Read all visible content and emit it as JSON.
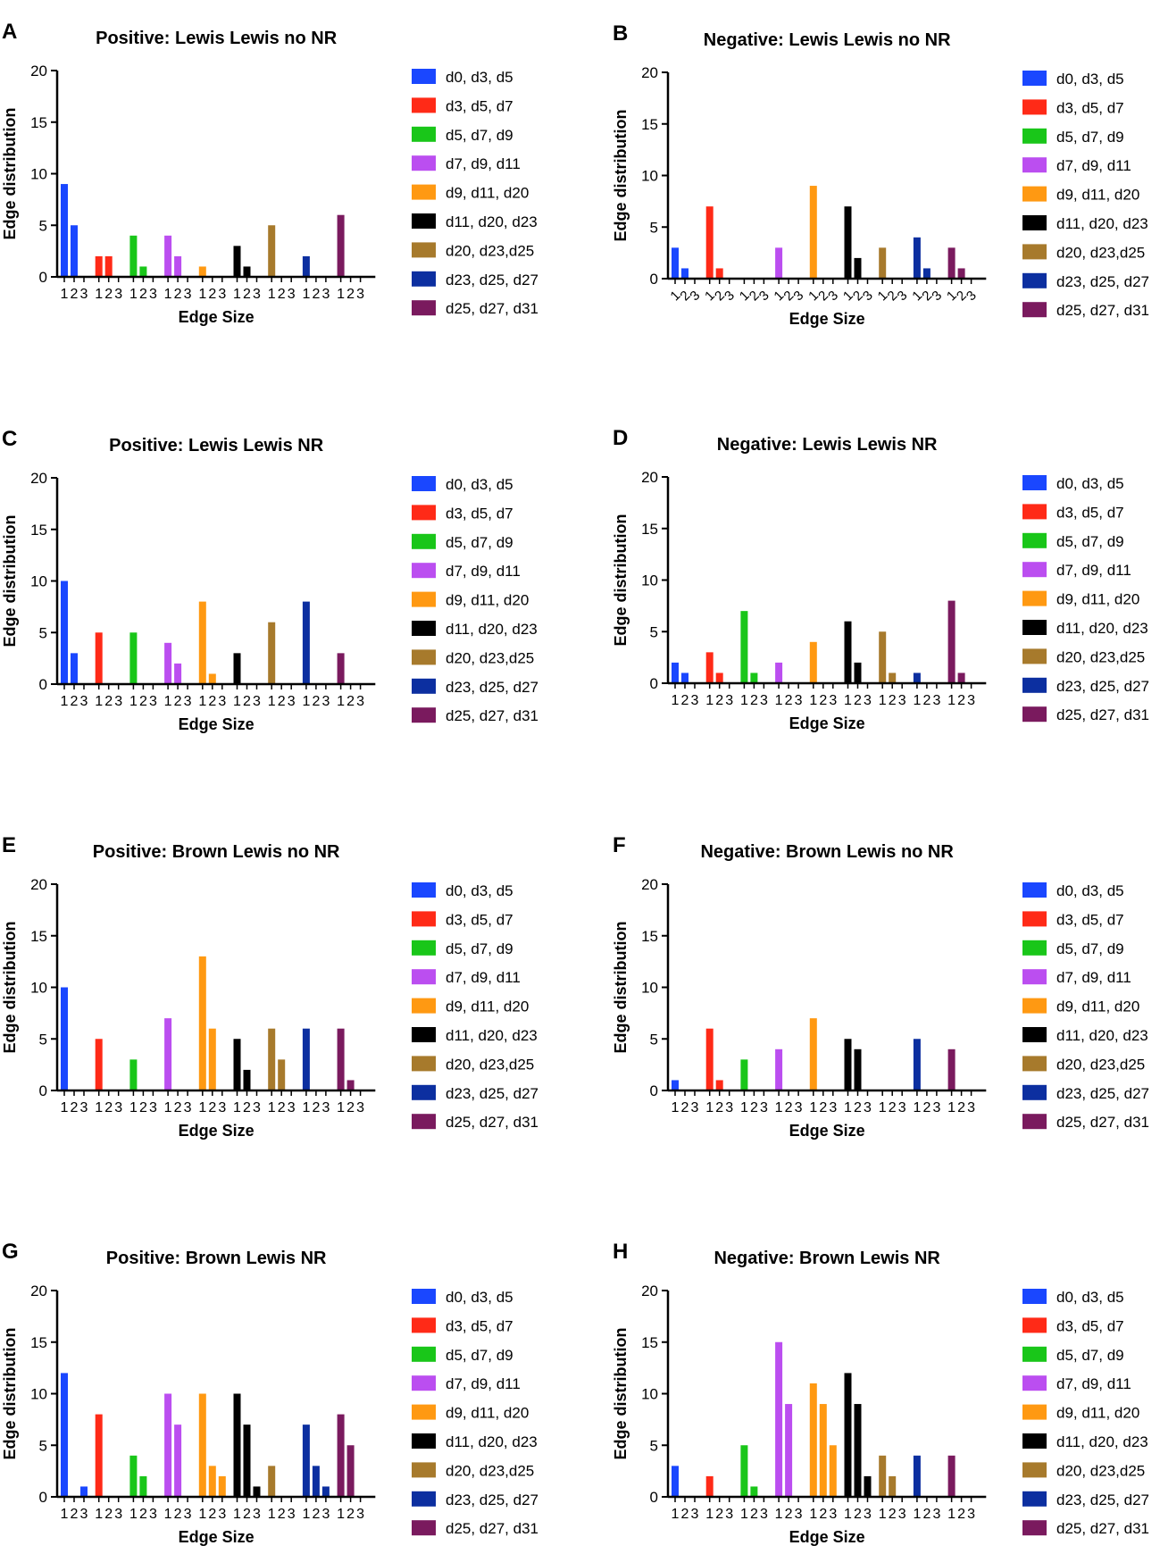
{
  "figure": {
    "series_colors": [
      "#1a47ff",
      "#ff2a17",
      "#19c619",
      "#bb4ef0",
      "#ff9912",
      "#000000",
      "#a77a2c",
      "#0c2fa0",
      "#7a1a5e"
    ],
    "legend_labels": [
      "d0, d3, d5",
      "d3, d5, d7",
      "d5, d7, d9",
      "d7, d9, d11",
      "d9, d11, d20",
      "d11, d20, d23",
      "d20, d23,d25",
      "d23, d25, d27",
      "d25, d27, d31"
    ]
  },
  "chart_data": [
    {
      "panel": "A",
      "type": "bar",
      "title": "Positive: Lewis Lewis no NR",
      "xlabel": "Edge Size",
      "ylabel": "Edge distribution",
      "ylim": [
        0,
        20
      ],
      "yticks": [
        0,
        5,
        10,
        15,
        20
      ],
      "categories": [
        "1",
        "2",
        "3"
      ],
      "tick_style": "straight",
      "series": [
        {
          "name": "d0, d3, d5",
          "values": [
            9,
            5,
            0
          ]
        },
        {
          "name": "d3, d5, d7",
          "values": [
            2,
            2,
            0
          ]
        },
        {
          "name": "d5, d7, d9",
          "values": [
            4,
            1,
            0
          ]
        },
        {
          "name": "d7, d9, d11",
          "values": [
            4,
            2,
            0
          ]
        },
        {
          "name": "d9, d11, d20",
          "values": [
            1,
            0,
            0
          ]
        },
        {
          "name": "d11, d20, d23",
          "values": [
            3,
            1,
            0
          ]
        },
        {
          "name": "d20, d23,d25",
          "values": [
            5,
            0,
            0
          ]
        },
        {
          "name": "d23, d25, d27",
          "values": [
            2,
            0,
            0
          ]
        },
        {
          "name": "d25, d27, d31",
          "values": [
            6,
            0,
            0
          ]
        }
      ]
    },
    {
      "panel": "B",
      "type": "bar",
      "title": "Negative: Lewis Lewis no NR",
      "xlabel": "Edge Size",
      "ylabel": "Edge distribution",
      "ylim": [
        0,
        20
      ],
      "yticks": [
        0,
        5,
        10,
        15,
        20
      ],
      "categories": [
        "1",
        "2",
        "3"
      ],
      "tick_style": "rotated",
      "series": [
        {
          "name": "d0, d3, d5",
          "values": [
            3,
            1,
            0
          ]
        },
        {
          "name": "d3, d5, d7",
          "values": [
            7,
            1,
            0
          ]
        },
        {
          "name": "d5, d7, d9",
          "values": [
            0,
            0,
            0
          ]
        },
        {
          "name": "d7, d9, d11",
          "values": [
            3,
            0,
            0
          ]
        },
        {
          "name": "d9, d11, d20",
          "values": [
            9,
            0,
            0
          ]
        },
        {
          "name": "d11, d20, d23",
          "values": [
            7,
            2,
            0
          ]
        },
        {
          "name": "d20, d23,d25",
          "values": [
            3,
            0,
            0
          ]
        },
        {
          "name": "d23, d25, d27",
          "values": [
            4,
            1,
            0
          ]
        },
        {
          "name": "d25, d27, d31",
          "values": [
            3,
            1,
            0
          ]
        }
      ]
    },
    {
      "panel": "C",
      "type": "bar",
      "title": "Positive: Lewis Lewis NR",
      "xlabel": "Edge Size",
      "ylabel": "Edge distribution",
      "ylim": [
        0,
        20
      ],
      "yticks": [
        0,
        5,
        10,
        15,
        20
      ],
      "categories": [
        "1",
        "2",
        "3"
      ],
      "tick_style": "straight",
      "series": [
        {
          "name": "d0, d3, d5",
          "values": [
            10,
            3,
            0
          ]
        },
        {
          "name": "d3, d5, d7",
          "values": [
            5,
            0,
            0
          ]
        },
        {
          "name": "d5, d7, d9",
          "values": [
            5,
            0,
            0
          ]
        },
        {
          "name": "d7, d9, d11",
          "values": [
            4,
            2,
            0
          ]
        },
        {
          "name": "d9, d11, d20",
          "values": [
            8,
            1,
            0
          ]
        },
        {
          "name": "d11, d20, d23",
          "values": [
            3,
            0,
            0
          ]
        },
        {
          "name": "d20, d23,d25",
          "values": [
            6,
            0,
            0
          ]
        },
        {
          "name": "d23, d25, d27",
          "values": [
            8,
            0,
            0
          ]
        },
        {
          "name": "d25, d27, d31",
          "values": [
            3,
            0,
            0
          ]
        }
      ]
    },
    {
      "panel": "D",
      "type": "bar",
      "title": "Negative: Lewis Lewis NR",
      "xlabel": "Edge Size",
      "ylabel": "Edge distribution",
      "ylim": [
        0,
        20
      ],
      "yticks": [
        0,
        5,
        10,
        15,
        20
      ],
      "categories": [
        "1",
        "2",
        "3"
      ],
      "tick_style": "straight",
      "series": [
        {
          "name": "d0, d3, d5",
          "values": [
            2,
            1,
            0
          ]
        },
        {
          "name": "d3, d5, d7",
          "values": [
            3,
            1,
            0
          ]
        },
        {
          "name": "d5, d7, d9",
          "values": [
            7,
            1,
            0
          ]
        },
        {
          "name": "d7, d9, d11",
          "values": [
            2,
            0,
            0
          ]
        },
        {
          "name": "d9, d11, d20",
          "values": [
            4,
            0,
            0
          ]
        },
        {
          "name": "d11, d20, d23",
          "values": [
            6,
            2,
            0
          ]
        },
        {
          "name": "d20, d23,d25",
          "values": [
            5,
            1,
            0
          ]
        },
        {
          "name": "d23, d25, d27",
          "values": [
            1,
            0,
            0
          ]
        },
        {
          "name": "d25, d27, d31",
          "values": [
            8,
            1,
            0
          ]
        }
      ]
    },
    {
      "panel": "E",
      "type": "bar",
      "title": "Positive: Brown Lewis no NR",
      "xlabel": "Edge Size",
      "ylabel": "Edge distribution",
      "ylim": [
        0,
        20
      ],
      "yticks": [
        0,
        5,
        10,
        15,
        20
      ],
      "categories": [
        "1",
        "2",
        "3"
      ],
      "tick_style": "straight",
      "series": [
        {
          "name": "d0, d3, d5",
          "values": [
            10,
            0,
            0
          ]
        },
        {
          "name": "d3, d5, d7",
          "values": [
            5,
            0,
            0
          ]
        },
        {
          "name": "d5, d7, d9",
          "values": [
            3,
            0,
            0
          ]
        },
        {
          "name": "d7, d9, d11",
          "values": [
            7,
            0,
            0
          ]
        },
        {
          "name": "d9, d11, d20",
          "values": [
            13,
            6,
            0
          ]
        },
        {
          "name": "d11, d20, d23",
          "values": [
            5,
            2,
            0
          ]
        },
        {
          "name": "d20, d23,d25",
          "values": [
            6,
            3,
            0
          ]
        },
        {
          "name": "d23, d25, d27",
          "values": [
            6,
            0,
            0
          ]
        },
        {
          "name": "d25, d27, d31",
          "values": [
            6,
            1,
            0
          ]
        }
      ]
    },
    {
      "panel": "F",
      "type": "bar",
      "title": "Negative: Brown Lewis no NR",
      "xlabel": "Edge Size",
      "ylabel": "Edge distribution",
      "ylim": [
        0,
        20
      ],
      "yticks": [
        0,
        5,
        10,
        15,
        20
      ],
      "categories": [
        "1",
        "2",
        "3"
      ],
      "tick_style": "straight",
      "series": [
        {
          "name": "d0, d3, d5",
          "values": [
            1,
            0,
            0
          ]
        },
        {
          "name": "d3, d5, d7",
          "values": [
            6,
            1,
            0
          ]
        },
        {
          "name": "d5, d7, d9",
          "values": [
            3,
            0,
            0
          ]
        },
        {
          "name": "d7, d9, d11",
          "values": [
            4,
            0,
            0
          ]
        },
        {
          "name": "d9, d11, d20",
          "values": [
            7,
            0,
            0
          ]
        },
        {
          "name": "d11, d20, d23",
          "values": [
            5,
            4,
            0
          ]
        },
        {
          "name": "d20, d23,d25",
          "values": [
            0,
            0,
            0
          ]
        },
        {
          "name": "d23, d25, d27",
          "values": [
            5,
            0,
            0
          ]
        },
        {
          "name": "d25, d27, d31",
          "values": [
            4,
            0,
            0
          ]
        }
      ]
    },
    {
      "panel": "G",
      "type": "bar",
      "title": "Positive: Brown Lewis NR",
      "xlabel": "Edge Size",
      "ylabel": "Edge distribution",
      "ylim": [
        0,
        20
      ],
      "yticks": [
        0,
        5,
        10,
        15,
        20
      ],
      "categories": [
        "1",
        "2",
        "3"
      ],
      "tick_style": "straight",
      "series": [
        {
          "name": "d0, d3, d5",
          "values": [
            12,
            0,
            1
          ]
        },
        {
          "name": "d3, d5, d7",
          "values": [
            8,
            0,
            0
          ]
        },
        {
          "name": "d5, d7, d9",
          "values": [
            4,
            2,
            0
          ]
        },
        {
          "name": "d7, d9, d11",
          "values": [
            10,
            7,
            0
          ]
        },
        {
          "name": "d9, d11, d20",
          "values": [
            10,
            3,
            2
          ]
        },
        {
          "name": "d11, d20, d23",
          "values": [
            10,
            7,
            1
          ]
        },
        {
          "name": "d20, d23,d25",
          "values": [
            3,
            0,
            0
          ]
        },
        {
          "name": "d23, d25, d27",
          "values": [
            7,
            3,
            1
          ]
        },
        {
          "name": "d25, d27, d31",
          "values": [
            8,
            5,
            0
          ]
        }
      ]
    },
    {
      "panel": "H",
      "type": "bar",
      "title": "Negative: Brown Lewis NR",
      "xlabel": "Edge Size",
      "ylabel": "Edge distribution",
      "ylim": [
        0,
        20
      ],
      "yticks": [
        0,
        5,
        10,
        15,
        20
      ],
      "categories": [
        "1",
        "2",
        "3"
      ],
      "tick_style": "straight",
      "series": [
        {
          "name": "d0, d3, d5",
          "values": [
            3,
            0,
            0
          ]
        },
        {
          "name": "d3, d5, d7",
          "values": [
            2,
            0,
            0
          ]
        },
        {
          "name": "d5, d7, d9",
          "values": [
            5,
            1,
            0
          ]
        },
        {
          "name": "d7, d9, d11",
          "values": [
            15,
            9,
            0
          ]
        },
        {
          "name": "d9, d11, d20",
          "values": [
            11,
            9,
            5
          ]
        },
        {
          "name": "d11, d20, d23",
          "values": [
            12,
            9,
            2
          ]
        },
        {
          "name": "d20, d23,d25",
          "values": [
            4,
            2,
            0
          ]
        },
        {
          "name": "d23, d25, d27",
          "values": [
            4,
            0,
            0
          ]
        },
        {
          "name": "d25, d27, d31",
          "values": [
            4,
            0,
            0
          ]
        }
      ]
    }
  ]
}
